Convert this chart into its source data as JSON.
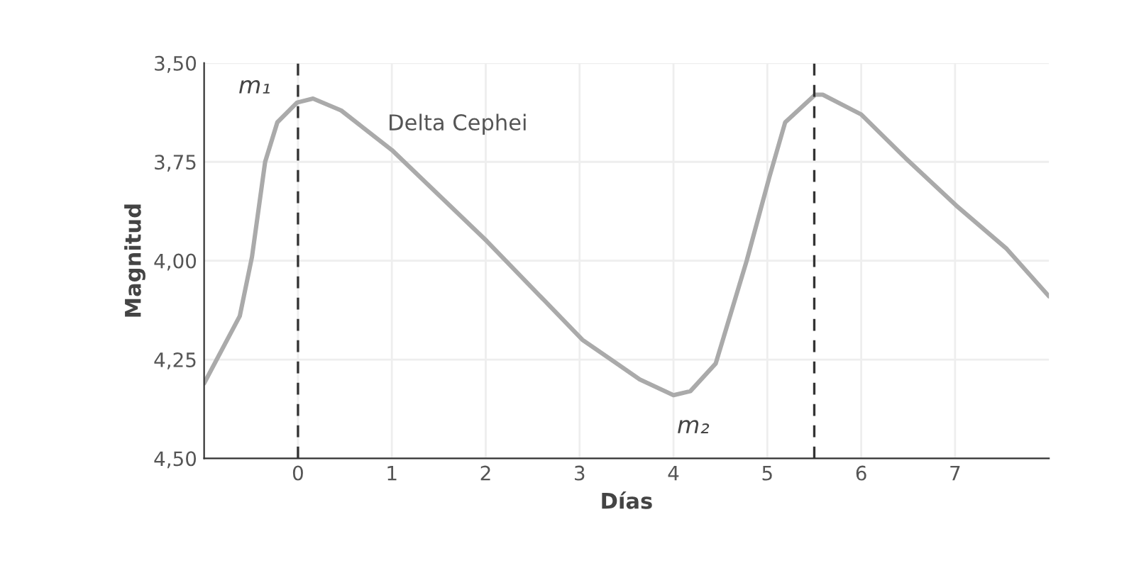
{
  "chart_data": {
    "type": "line",
    "xlabel": "Días",
    "ylabel": "Magnitud",
    "x": [
      -1.0,
      -0.62,
      -0.49,
      -0.35,
      -0.22,
      -0.01,
      0.16,
      0.46,
      1.0,
      2.01,
      3.03,
      3.64,
      4.0,
      4.18,
      4.45,
      4.78,
      5.02,
      5.19,
      5.51,
      5.59,
      6.0,
      6.47,
      7.01,
      7.55,
      8.0
    ],
    "series": [
      {
        "color": "#aaaaaa",
        "values": [
          4.31,
          4.14,
          3.99,
          3.75,
          3.65,
          3.6,
          3.59,
          3.62,
          3.72,
          3.95,
          4.2,
          4.3,
          4.34,
          4.33,
          4.26,
          4.0,
          3.79,
          3.65,
          3.58,
          3.58,
          3.63,
          3.74,
          3.86,
          3.97,
          4.09
        ]
      }
    ],
    "xlim": [
      -1,
      8
    ],
    "ylim": [
      4.5,
      3.5
    ],
    "xticks": [
      0,
      1,
      2,
      3,
      4,
      5,
      6,
      7
    ],
    "yticks": [
      {
        "value": 3.5,
        "label": "3,50"
      },
      {
        "value": 3.75,
        "label": "3,75"
      },
      {
        "value": 4.0,
        "label": "4,00"
      },
      {
        "value": 4.25,
        "label": "4,25"
      },
      {
        "value": 4.5,
        "label": "4,50"
      }
    ],
    "ref_lines": [
      {
        "axis": "x",
        "value": 0,
        "color": "#333333",
        "line_style": "dashed"
      },
      {
        "axis": "x",
        "value": 5.5,
        "color": "#333333",
        "line_style": "dashed"
      }
    ],
    "annotations": [
      "Delta Cephei",
      {
        "text": "m₁",
        "x": 0,
        "y": 3.6
      },
      {
        "text": "m₂",
        "x": 4,
        "y": 4.34
      }
    ],
    "grid": true,
    "marker": "none",
    "line_style": "solid"
  }
}
